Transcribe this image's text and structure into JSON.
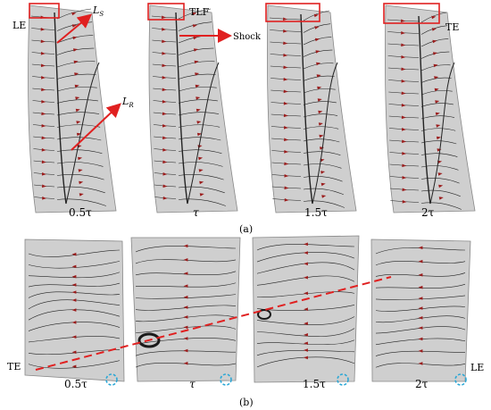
{
  "row_a": {
    "panels": [
      {
        "time": "0.5τ"
      },
      {
        "time": "τ"
      },
      {
        "time": "1.5τ"
      },
      {
        "time": "2τ"
      }
    ],
    "caption": "(a)",
    "labels": {
      "le": "LE",
      "te": "TE",
      "tlf": "TLF",
      "shock": "Shock",
      "ls_main": "L",
      "ls_sub": "S",
      "lr_main": "L",
      "lr_sub": "R"
    }
  },
  "row_b": {
    "panels": [
      {
        "time": "0.5τ"
      },
      {
        "time": "τ"
      },
      {
        "time": "1.5τ"
      },
      {
        "time": "2τ"
      }
    ],
    "caption": "(b)",
    "labels": {
      "te": "TE",
      "le": "LE"
    }
  },
  "colors": {
    "surface": "#cfcfcf",
    "streamline": "#222222",
    "arrowhead": "#9b1c1c",
    "annotation": "#e02020",
    "highlight_circle": "#2aa7d6"
  }
}
